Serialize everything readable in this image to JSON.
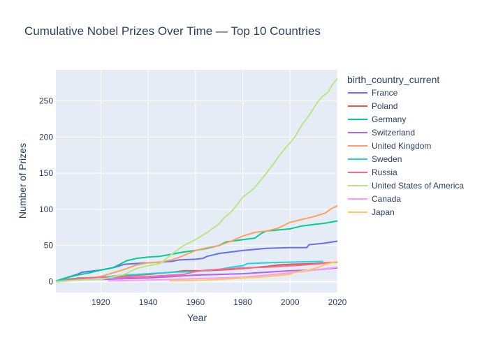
{
  "chart_data": {
    "type": "line",
    "title": "Cumulative Nobel Prizes Over Time — Top 10 Countries",
    "xlabel": "Year",
    "ylabel": "Number of Prizes",
    "xlim": [
      1901,
      2020
    ],
    "ylim": [
      -15,
      293
    ],
    "x_ticks": [
      1920,
      1940,
      1960,
      1980,
      2000,
      2020
    ],
    "y_ticks": [
      0,
      50,
      100,
      150,
      200,
      250
    ],
    "grid": true,
    "legend_title": "birth_country_current",
    "legend_position": "right",
    "series": [
      {
        "name": "France",
        "color": "#636efa",
        "points": [
          [
            1901,
            0
          ],
          [
            1904,
            4
          ],
          [
            1910,
            10
          ],
          [
            1912,
            13
          ],
          [
            1920,
            16
          ],
          [
            1926,
            20
          ],
          [
            1930,
            24
          ],
          [
            1940,
            26
          ],
          [
            1950,
            28
          ],
          [
            1953,
            30
          ],
          [
            1960,
            31
          ],
          [
            1963,
            32
          ],
          [
            1965,
            35
          ],
          [
            1970,
            39
          ],
          [
            1980,
            43
          ],
          [
            1990,
            46
          ],
          [
            2000,
            47
          ],
          [
            2007,
            47
          ],
          [
            2008,
            51
          ],
          [
            2014,
            53
          ],
          [
            2020,
            56
          ]
        ]
      },
      {
        "name": "Poland",
        "color": "#EF553B",
        "points": [
          [
            1901,
            0
          ],
          [
            1905,
            3
          ],
          [
            1911,
            5
          ],
          [
            1920,
            6
          ],
          [
            1930,
            8
          ],
          [
            1940,
            10
          ],
          [
            1950,
            13
          ],
          [
            1955,
            15
          ],
          [
            1965,
            15
          ],
          [
            1975,
            17
          ],
          [
            1980,
            18
          ],
          [
            1990,
            21
          ],
          [
            1995,
            23
          ],
          [
            2000,
            24
          ],
          [
            2010,
            25
          ],
          [
            2020,
            27
          ]
        ]
      },
      {
        "name": "Germany",
        "color": "#00cc96",
        "points": [
          [
            1901,
            1
          ],
          [
            1905,
            5
          ],
          [
            1910,
            9
          ],
          [
            1915,
            12
          ],
          [
            1920,
            16
          ],
          [
            1925,
            19
          ],
          [
            1928,
            24
          ],
          [
            1931,
            29
          ],
          [
            1935,
            32
          ],
          [
            1940,
            34
          ],
          [
            1945,
            35
          ],
          [
            1950,
            38
          ],
          [
            1955,
            41
          ],
          [
            1960,
            43
          ],
          [
            1965,
            46
          ],
          [
            1970,
            50
          ],
          [
            1973,
            55
          ],
          [
            1980,
            58
          ],
          [
            1985,
            60
          ],
          [
            1988,
            67
          ],
          [
            1990,
            70
          ],
          [
            2000,
            73
          ],
          [
            2005,
            77
          ],
          [
            2010,
            79
          ],
          [
            2015,
            81
          ],
          [
            2020,
            84
          ]
        ]
      },
      {
        "name": "Switzerland",
        "color": "#ab63fa",
        "points": [
          [
            1901,
            0
          ],
          [
            1910,
            2
          ],
          [
            1920,
            3
          ],
          [
            1930,
            4
          ],
          [
            1940,
            5
          ],
          [
            1950,
            7
          ],
          [
            1960,
            9
          ],
          [
            1970,
            10
          ],
          [
            1980,
            11
          ],
          [
            1990,
            13
          ],
          [
            2000,
            15
          ],
          [
            2010,
            16
          ],
          [
            2020,
            19
          ]
        ]
      },
      {
        "name": "United Kingdom",
        "color": "#FFA15A",
        "points": [
          [
            1901,
            0
          ],
          [
            1905,
            2
          ],
          [
            1910,
            4
          ],
          [
            1915,
            5
          ],
          [
            1920,
            7
          ],
          [
            1925,
            12
          ],
          [
            1930,
            17
          ],
          [
            1935,
            23
          ],
          [
            1940,
            26
          ],
          [
            1945,
            27
          ],
          [
            1950,
            30
          ],
          [
            1955,
            36
          ],
          [
            1960,
            43
          ],
          [
            1965,
            47
          ],
          [
            1970,
            50
          ],
          [
            1975,
            56
          ],
          [
            1980,
            63
          ],
          [
            1985,
            68
          ],
          [
            1990,
            70
          ],
          [
            1995,
            74
          ],
          [
            2000,
            82
          ],
          [
            2005,
            86
          ],
          [
            2010,
            90
          ],
          [
            2015,
            95
          ],
          [
            2017,
            100
          ],
          [
            2020,
            105
          ]
        ]
      },
      {
        "name": "Sweden",
        "color": "#19d3f3",
        "points": [
          [
            1901,
            1
          ],
          [
            1910,
            4
          ],
          [
            1920,
            6
          ],
          [
            1930,
            9
          ],
          [
            1940,
            11
          ],
          [
            1950,
            13
          ],
          [
            1960,
            14
          ],
          [
            1970,
            17
          ],
          [
            1975,
            20
          ],
          [
            1980,
            22
          ],
          [
            1982,
            25
          ],
          [
            1990,
            26
          ],
          [
            2000,
            27
          ],
          [
            2014,
            28
          ]
        ]
      },
      {
        "name": "Russia",
        "color": "#FF6692",
        "points": [
          [
            1901,
            0
          ],
          [
            1908,
            3
          ],
          [
            1915,
            5
          ],
          [
            1920,
            6
          ],
          [
            1930,
            6
          ],
          [
            1940,
            7
          ],
          [
            1950,
            9
          ],
          [
            1955,
            10
          ],
          [
            1960,
            14
          ],
          [
            1965,
            16
          ],
          [
            1970,
            17
          ],
          [
            1975,
            18
          ],
          [
            1980,
            19
          ],
          [
            1990,
            20
          ],
          [
            2000,
            22
          ],
          [
            2010,
            24
          ],
          [
            2020,
            27
          ]
        ]
      },
      {
        "name": "United States of America",
        "color": "#B6E880",
        "points": [
          [
            1901,
            0
          ],
          [
            1910,
            2
          ],
          [
            1920,
            3
          ],
          [
            1930,
            10
          ],
          [
            1935,
            18
          ],
          [
            1940,
            22
          ],
          [
            1945,
            25
          ],
          [
            1950,
            38
          ],
          [
            1955,
            50
          ],
          [
            1960,
            58
          ],
          [
            1965,
            68
          ],
          [
            1970,
            80
          ],
          [
            1972,
            88
          ],
          [
            1975,
            96
          ],
          [
            1978,
            108
          ],
          [
            1980,
            117
          ],
          [
            1983,
            124
          ],
          [
            1985,
            130
          ],
          [
            1987,
            138
          ],
          [
            1990,
            150
          ],
          [
            1993,
            163
          ],
          [
            1995,
            172
          ],
          [
            1998,
            185
          ],
          [
            2000,
            192
          ],
          [
            2002,
            200
          ],
          [
            2005,
            217
          ],
          [
            2008,
            230
          ],
          [
            2010,
            240
          ],
          [
            2012,
            250
          ],
          [
            2014,
            257
          ],
          [
            2016,
            262
          ],
          [
            2018,
            273
          ],
          [
            2020,
            281
          ]
        ]
      },
      {
        "name": "Canada",
        "color": "#FF97FF",
        "points": [
          [
            1923,
            1
          ],
          [
            1940,
            2
          ],
          [
            1950,
            3
          ],
          [
            1960,
            4
          ],
          [
            1970,
            5
          ],
          [
            1980,
            6
          ],
          [
            1990,
            9
          ],
          [
            2000,
            12
          ],
          [
            2010,
            16
          ],
          [
            2020,
            20
          ]
        ]
      },
      {
        "name": "Japan",
        "color": "#FECB52",
        "points": [
          [
            1949,
            1
          ],
          [
            1965,
            2
          ],
          [
            1970,
            3
          ],
          [
            1980,
            5
          ],
          [
            1990,
            7
          ],
          [
            2000,
            10
          ],
          [
            2002,
            13
          ],
          [
            2008,
            16
          ],
          [
            2012,
            20
          ],
          [
            2015,
            24
          ],
          [
            2020,
            28
          ]
        ]
      }
    ]
  }
}
